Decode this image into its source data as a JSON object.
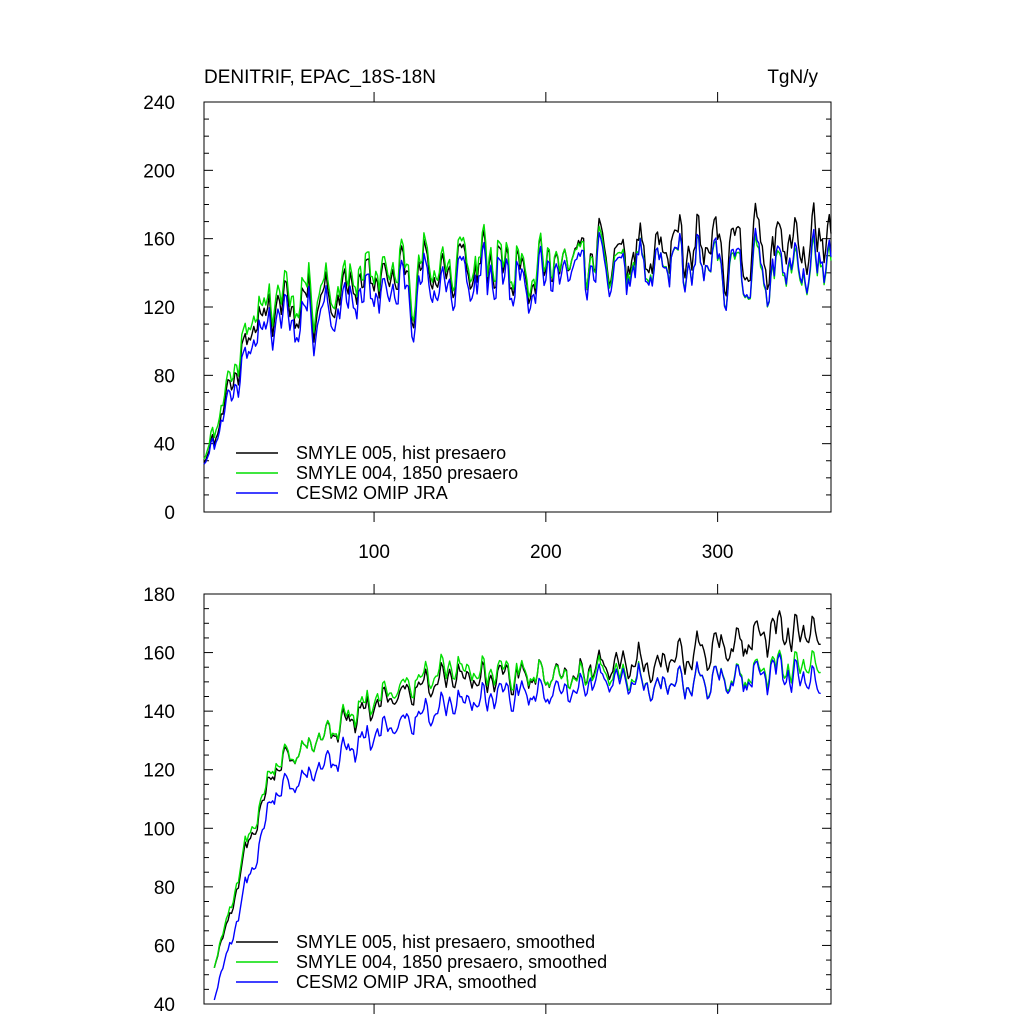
{
  "chart_data": [
    {
      "type": "line",
      "title": "DENITRIF, EPAC_18S-18N",
      "units": "TgN/y",
      "xlim": [
        1,
        366
      ],
      "ylim": [
        0,
        240
      ],
      "xticks": [
        100,
        200,
        300
      ],
      "xtick_labels": [
        "100",
        "200",
        "300"
      ],
      "yticks": [
        0,
        40,
        80,
        120,
        160,
        200,
        240
      ],
      "ytick_labels": [
        "0",
        "40",
        "80",
        "120",
        "160",
        "200",
        "240"
      ],
      "legend_location": "bottom-left",
      "series": [
        {
          "name": "SMYLE 005, hist presaero",
          "color": "#000000",
          "anchors": [
            [
              1,
              28
            ],
            [
              5,
              40
            ],
            [
              10,
              55
            ],
            [
              15,
              70
            ],
            [
              20,
              85
            ],
            [
              25,
              100
            ],
            [
              30,
              110
            ],
            [
              40,
              118
            ],
            [
              60,
              125
            ],
            [
              80,
              130
            ],
            [
              100,
              136
            ],
            [
              130,
              140
            ],
            [
              160,
              143
            ],
            [
              200,
              146
            ],
            [
              230,
              148
            ],
            [
              260,
              150
            ],
            [
              290,
              152
            ],
            [
              320,
              155
            ],
            [
              340,
              157
            ],
            [
              366,
              158
            ]
          ],
          "amp": [
            [
              1,
              8
            ],
            [
              20,
              22
            ],
            [
              60,
              28
            ],
            [
              150,
              30
            ],
            [
              250,
              30
            ],
            [
              366,
              34
            ]
          ],
          "seed": 11
        },
        {
          "name": "SMYLE 004, 1850 presaero",
          "color": "#00dd00",
          "anchors": [
            [
              1,
              30
            ],
            [
              5,
              44
            ],
            [
              10,
              60
            ],
            [
              15,
              75
            ],
            [
              20,
              90
            ],
            [
              25,
              106
            ],
            [
              30,
              116
            ],
            [
              40,
              124
            ],
            [
              60,
              131
            ],
            [
              80,
              135
            ],
            [
              100,
              140
            ],
            [
              130,
              144
            ],
            [
              160,
              147
            ],
            [
              200,
              148
            ],
            [
              230,
              146
            ],
            [
              260,
              143
            ],
            [
              290,
              142
            ],
            [
              320,
              141
            ],
            [
              340,
              142
            ],
            [
              366,
              143
            ]
          ],
          "amp": [
            [
              1,
              8
            ],
            [
              20,
              22
            ],
            [
              60,
              28
            ],
            [
              150,
              30
            ],
            [
              250,
              26
            ],
            [
              366,
              28
            ]
          ],
          "seed": 11
        },
        {
          "name": "CESM2 OMIP JRA",
          "color": "#0000ff",
          "anchors": [
            [
              1,
              27
            ],
            [
              5,
              38
            ],
            [
              10,
              52
            ],
            [
              15,
              64
            ],
            [
              20,
              78
            ],
            [
              25,
              92
            ],
            [
              30,
              102
            ],
            [
              40,
              110
            ],
            [
              60,
              117
            ],
            [
              80,
              122
            ],
            [
              100,
              127
            ],
            [
              130,
              132
            ],
            [
              160,
              136
            ],
            [
              200,
              140
            ],
            [
              230,
              141
            ],
            [
              260,
              142
            ],
            [
              290,
              142
            ],
            [
              320,
              143
            ],
            [
              340,
              144
            ],
            [
              366,
              145
            ]
          ],
          "amp": [
            [
              1,
              8
            ],
            [
              20,
              22
            ],
            [
              60,
              28
            ],
            [
              150,
              30
            ],
            [
              250,
              28
            ],
            [
              366,
              30
            ]
          ],
          "seed": 11
        }
      ]
    },
    {
      "type": "line",
      "title": "",
      "xlim": [
        1,
        366
      ],
      "ylim": [
        40,
        180
      ],
      "xticks": [
        100,
        200,
        300
      ],
      "yticks": [
        40,
        60,
        80,
        100,
        120,
        140,
        160,
        180
      ],
      "ytick_labels": [
        "40",
        "60",
        "80",
        "100",
        "120",
        "140",
        "160",
        "180"
      ],
      "legend_location": "bottom-left",
      "series": [
        {
          "name": "SMYLE 005, hist presaero, smoothed",
          "color": "#000000",
          "anchors": [
            [
              7,
              54
            ],
            [
              15,
              68
            ],
            [
              25,
              92
            ],
            [
              30,
              98
            ],
            [
              40,
              118
            ],
            [
              55,
              128
            ],
            [
              70,
              132
            ],
            [
              90,
              138
            ],
            [
              110,
              146
            ],
            [
              140,
              152
            ],
            [
              170,
              152
            ],
            [
              200,
              152
            ],
            [
              230,
              154
            ],
            [
              260,
              157
            ],
            [
              290,
              160
            ],
            [
              320,
              164
            ],
            [
              340,
              166
            ],
            [
              360,
              165
            ]
          ],
          "amp": [
            [
              7,
              3
            ],
            [
              40,
              7
            ],
            [
              120,
              8
            ],
            [
              250,
              9
            ],
            [
              360,
              11
            ]
          ],
          "seed": 5
        },
        {
          "name": "SMYLE 004, 1850 presaero, smoothed",
          "color": "#00dd00",
          "anchors": [
            [
              7,
              54
            ],
            [
              15,
              70
            ],
            [
              25,
              94
            ],
            [
              30,
              100
            ],
            [
              40,
              120
            ],
            [
              55,
              128
            ],
            [
              70,
              132
            ],
            [
              90,
              140
            ],
            [
              110,
              148
            ],
            [
              140,
              155
            ],
            [
              170,
              154
            ],
            [
              200,
              152
            ],
            [
              230,
              153
            ],
            [
              260,
              150
            ],
            [
              290,
              150
            ],
            [
              320,
              152
            ],
            [
              340,
              154
            ],
            [
              360,
              155
            ]
          ],
          "amp": [
            [
              7,
              3
            ],
            [
              40,
              7
            ],
            [
              120,
              8
            ],
            [
              250,
              8
            ],
            [
              360,
              9
            ]
          ],
          "seed": 5
        },
        {
          "name": "CESM2 OMIP JRA, smoothed",
          "color": "#0000ff",
          "anchors": [
            [
              7,
              43
            ],
            [
              15,
              58
            ],
            [
              25,
              80
            ],
            [
              30,
              86
            ],
            [
              40,
              110
            ],
            [
              55,
              118
            ],
            [
              70,
              122
            ],
            [
              90,
              128
            ],
            [
              110,
              136
            ],
            [
              140,
              142
            ],
            [
              170,
              146
            ],
            [
              200,
              146
            ],
            [
              230,
              150
            ],
            [
              260,
              150
            ],
            [
              290,
              150
            ],
            [
              320,
              151
            ],
            [
              340,
              152
            ],
            [
              360,
              148
            ]
          ],
          "amp": [
            [
              7,
              3
            ],
            [
              40,
              7
            ],
            [
              120,
              8
            ],
            [
              250,
              8
            ],
            [
              360,
              10
            ]
          ],
          "seed": 5
        }
      ]
    }
  ]
}
